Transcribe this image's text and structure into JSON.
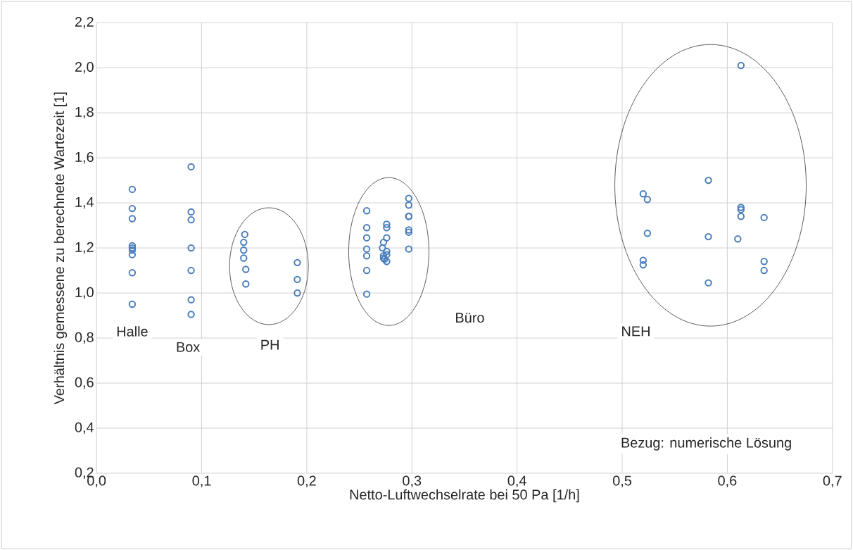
{
  "chart_data": {
    "type": "scatter",
    "xlabel": "Netto-Luftwechselrate bei 50 Pa [1/h]",
    "ylabel": "Verhältnis gemessene zu berechnete Wartezeit [1]",
    "x": [
      0.034,
      0.034,
      0.034,
      0.034,
      0.034,
      0.034,
      0.034,
      0.034,
      0.034,
      0.09,
      0.09,
      0.09,
      0.09,
      0.09,
      0.09,
      0.09,
      0.141,
      0.14,
      0.14,
      0.14,
      0.142,
      0.142,
      0.191,
      0.191,
      0.191,
      0.257,
      0.257,
      0.257,
      0.257,
      0.257,
      0.257,
      0.257,
      0.273,
      0.272,
      0.273,
      0.273,
      0.274,
      0.276,
      0.276,
      0.276,
      0.276,
      0.276,
      0.276,
      0.297,
      0.297,
      0.297,
      0.297,
      0.297,
      0.297,
      0.297,
      0.52,
      0.524,
      0.524,
      0.52,
      0.52,
      0.582,
      0.582,
      0.582,
      0.613,
      0.613,
      0.613,
      0.613,
      0.61,
      0.635,
      0.635,
      0.635
    ],
    "values": [
      1.46,
      1.375,
      1.33,
      1.21,
      1.2,
      1.19,
      1.17,
      1.09,
      0.95,
      1.56,
      1.36,
      1.325,
      1.2,
      1.1,
      0.97,
      0.905,
      1.26,
      1.225,
      1.19,
      1.155,
      1.105,
      1.04,
      1.135,
      1.06,
      1.0,
      1.365,
      1.29,
      1.245,
      1.195,
      1.165,
      1.1,
      0.995,
      1.225,
      1.2,
      1.165,
      1.155,
      1.15,
      1.305,
      1.29,
      1.245,
      1.185,
      1.17,
      1.14,
      1.42,
      1.39,
      1.34,
      1.34,
      1.28,
      1.27,
      1.195,
      1.44,
      1.415,
      1.265,
      1.145,
      1.125,
      1.5,
      1.25,
      1.045,
      2.01,
      1.38,
      1.37,
      1.34,
      1.24,
      1.335,
      1.14,
      1.1
    ],
    "color": "#4a7ebb",
    "marker": "circle",
    "grid": true,
    "xlim": [
      0,
      0.7
    ],
    "ylim": [
      0.2,
      2.2
    ],
    "xticks": [
      {
        "value": 0,
        "label": "0,0"
      },
      {
        "value": 0.1,
        "label": "0,1"
      },
      {
        "value": 0.2,
        "label": "0,2"
      },
      {
        "value": 0.3,
        "label": "0,3"
      },
      {
        "value": 0.4,
        "label": "0,4"
      },
      {
        "value": 0.5,
        "label": "0,5"
      },
      {
        "value": 0.6,
        "label": "0,6"
      },
      {
        "value": 0.7,
        "label": "0,7"
      }
    ],
    "yticks": [
      {
        "value": 0.2,
        "label": "0,2"
      },
      {
        "value": 0.4,
        "label": "0,4"
      },
      {
        "value": 0.6,
        "label": "0,6"
      },
      {
        "value": 0.8,
        "label": "0,8"
      },
      {
        "value": 1.0,
        "label": "1,0"
      },
      {
        "value": 1.2,
        "label": "1,2"
      },
      {
        "value": 1.4,
        "label": "1,4"
      },
      {
        "value": 1.6,
        "label": "1,6"
      },
      {
        "value": 1.8,
        "label": "1,8"
      },
      {
        "value": 2.0,
        "label": "2,0"
      },
      {
        "value": 2.2,
        "label": "2,2"
      }
    ],
    "annotations": [
      "Halle",
      "Box",
      "PH",
      "Büro",
      "NEH",
      "Bezug: numerische Lösung"
    ]
  }
}
